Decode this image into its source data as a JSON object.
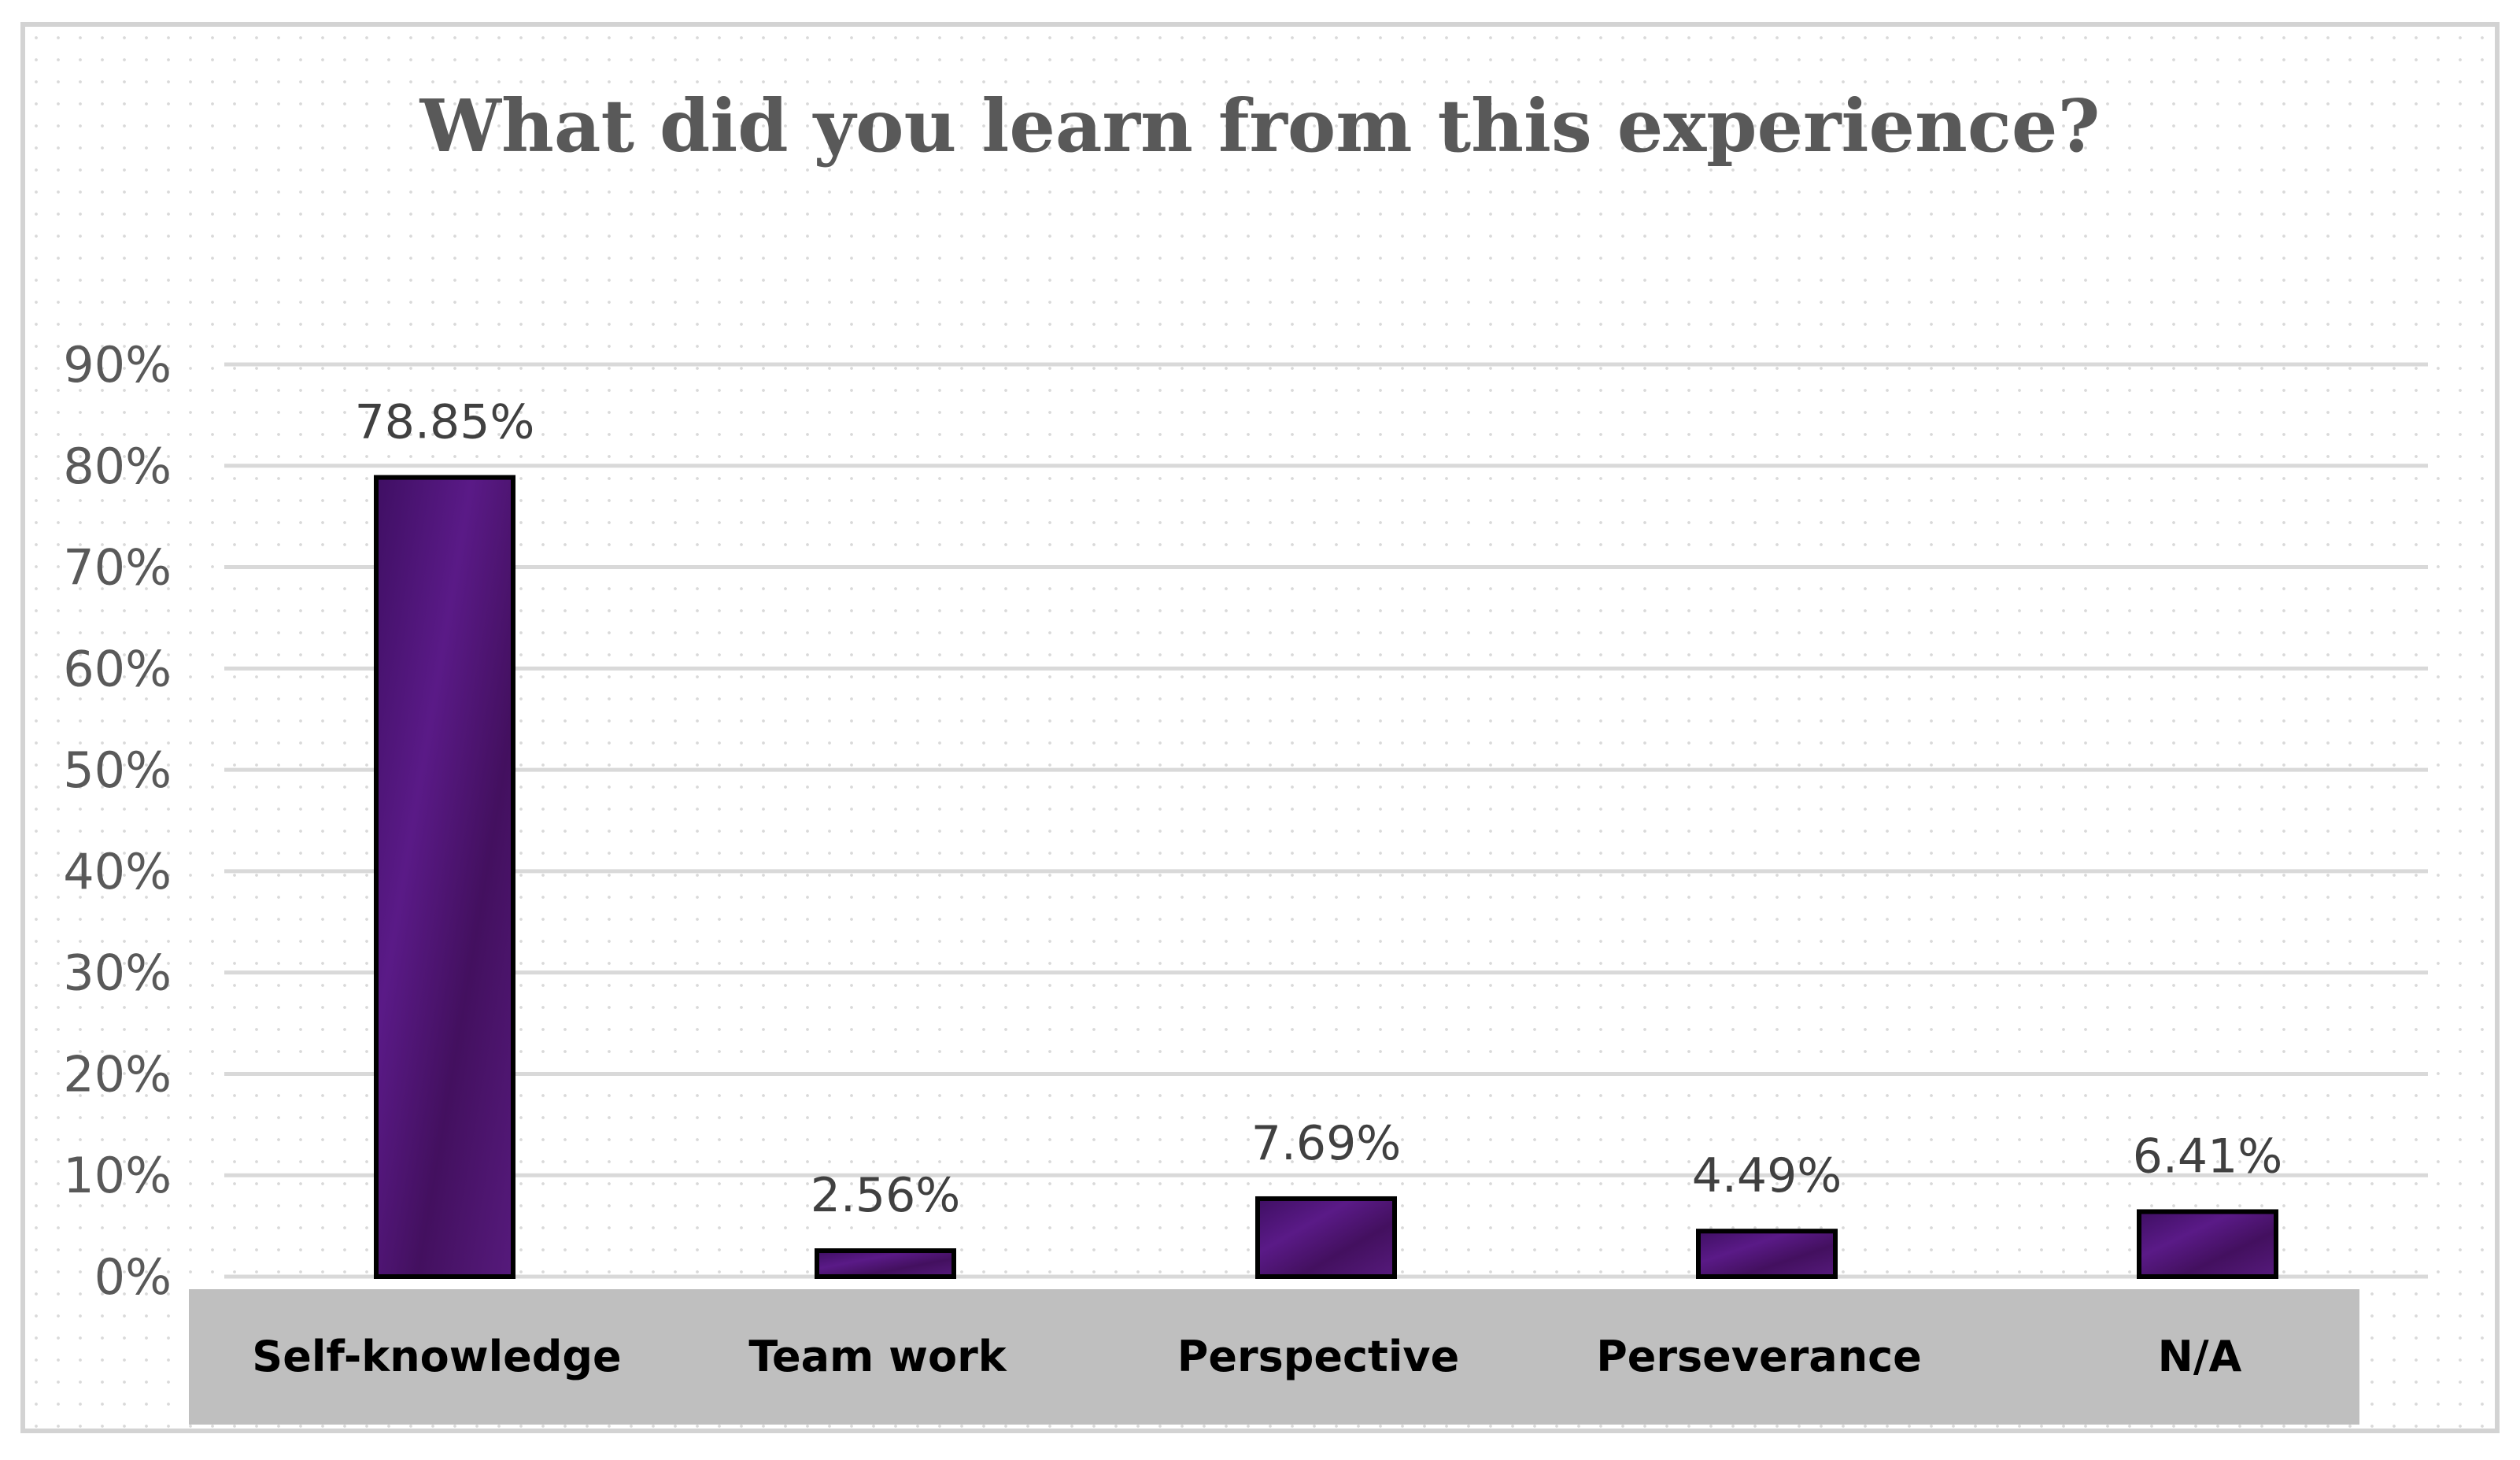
{
  "chart_data": {
    "type": "bar",
    "title": "What did you learn from this experience?",
    "categories": [
      "Self-knowledge",
      "Team work",
      "Perspective",
      "Perseverance",
      "N/A"
    ],
    "values": [
      78.85,
      2.56,
      7.69,
      4.49,
      6.41
    ],
    "data_labels": [
      "78.85%",
      "2.56%",
      "7.69%",
      "4.49%",
      "6.41%"
    ],
    "xlabel": "",
    "ylabel": "",
    "ylim": [
      0,
      90
    ],
    "yticks": [
      0,
      10,
      20,
      30,
      40,
      50,
      60,
      70,
      80,
      90
    ],
    "ytick_labels": [
      "0%",
      "10%",
      "20%",
      "30%",
      "40%",
      "50%",
      "60%",
      "70%",
      "80%",
      "90%"
    ],
    "grid": true,
    "legend": "none",
    "colors": {
      "bar_fill": "#4b1570",
      "bar_outline": "#000000",
      "gridline": "#d9d9d9",
      "category_band": "#bfbfbf",
      "title": "#595959"
    }
  }
}
